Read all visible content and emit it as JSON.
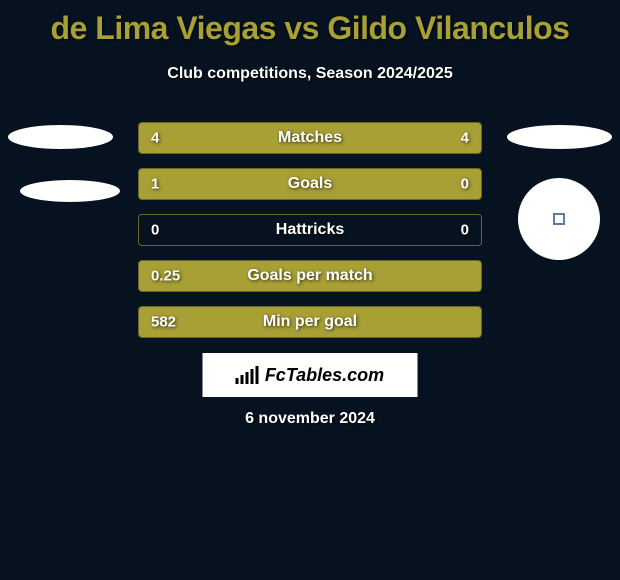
{
  "title": "de Lima Viegas vs Gildo Vilanculos",
  "subtitle": "Club competitions, Season 2024/2025",
  "date": "6 november 2024",
  "logo_text": "FcTables.com",
  "colors": {
    "background": "#071220",
    "accent": "#a89f35",
    "bar_fill": "#a89f35",
    "bar_border": "#6b6530",
    "text": "#ffffff"
  },
  "stats": [
    {
      "label": "Matches",
      "left_value": "4",
      "right_value": "4",
      "left_width_pct": 50,
      "right_width_pct": 50
    },
    {
      "label": "Goals",
      "left_value": "1",
      "right_value": "0",
      "left_width_pct": 77,
      "right_width_pct": 23
    },
    {
      "label": "Hattricks",
      "left_value": "0",
      "right_value": "0",
      "left_width_pct": 0,
      "right_width_pct": 0
    },
    {
      "label": "Goals per match",
      "left_value": "0.25",
      "right_value": "",
      "left_width_pct": 100,
      "right_width_pct": 0
    },
    {
      "label": "Min per goal",
      "left_value": "582",
      "right_value": "",
      "left_width_pct": 100,
      "right_width_pct": 0
    }
  ],
  "logo_bars_heights": [
    6,
    9,
    12,
    15,
    18
  ]
}
